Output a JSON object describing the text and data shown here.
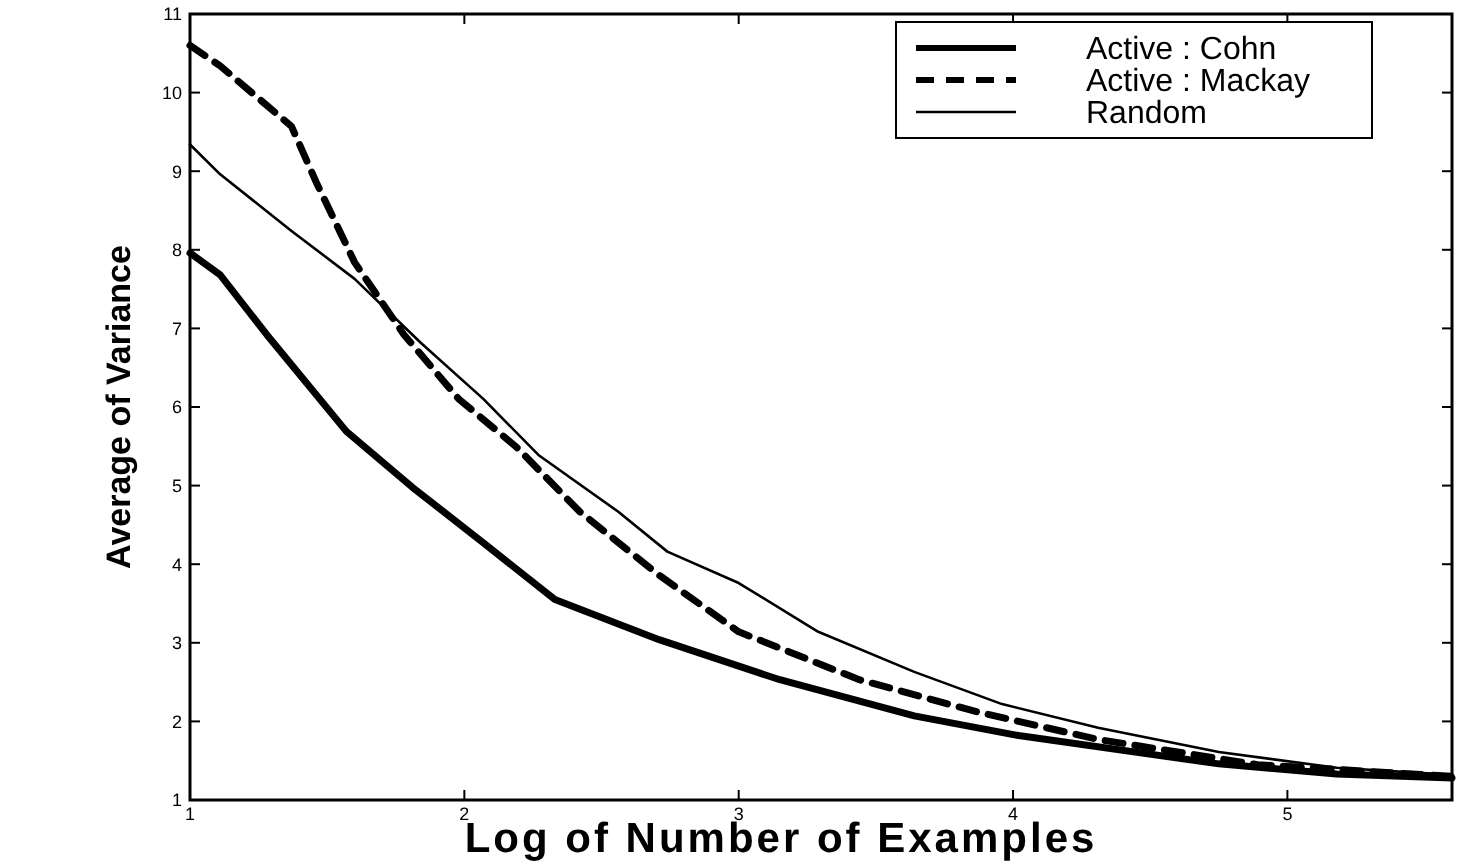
{
  "chart_data": {
    "type": "line",
    "xlabel": "Log of Number of Examples",
    "ylabel": "Average of Variance",
    "xlim": [
      1,
      5.6
    ],
    "ylim": [
      1,
      11
    ],
    "xticks": [
      1,
      2,
      3,
      4,
      5
    ],
    "yticks": [
      1,
      2,
      3,
      4,
      5,
      6,
      7,
      8,
      9,
      10,
      11
    ],
    "grid": false,
    "legend": "top right",
    "marker": "none",
    "series": [
      {
        "name": "Active : Cohn",
        "color": "#000000",
        "line_style": "solid",
        "x": [
          1,
          1.11,
          1.28,
          1.57,
          1.81,
          2.07,
          2.33,
          2.71,
          3.15,
          3.64,
          4.02,
          4.75,
          5.18,
          5.6
        ],
        "values": [
          7.96,
          7.68,
          6.92,
          5.69,
          4.98,
          4.27,
          3.55,
          3.04,
          2.53,
          2.07,
          1.82,
          1.46,
          1.33,
          1.28
        ]
      },
      {
        "name": "Active : Mackay",
        "color": "#000000",
        "line_style": "dashed",
        "x": [
          1,
          1.11,
          1.37,
          1.46,
          1.6,
          1.78,
          1.98,
          2.19,
          2.42,
          2.71,
          3,
          3.44,
          3.87,
          4.31,
          4.89,
          5.6
        ],
        "values": [
          10.6,
          10.34,
          9.57,
          8.86,
          7.84,
          6.92,
          6.1,
          5.49,
          4.67,
          3.86,
          3.14,
          2.53,
          2.12,
          1.77,
          1.45,
          1.3
        ]
      },
      {
        "name": "Random",
        "color": "#000000",
        "line_style": "solid",
        "x": [
          1,
          1.11,
          1.37,
          1.6,
          1.84,
          2.07,
          2.27,
          2.56,
          2.74,
          3,
          3.29,
          3.64,
          3.96,
          4.31,
          4.75,
          5.18,
          5.6
        ],
        "values": [
          9.34,
          8.96,
          8.24,
          7.63,
          6.82,
          6.1,
          5.39,
          4.67,
          4.16,
          3.76,
          3.14,
          2.63,
          2.22,
          1.92,
          1.61,
          1.41,
          1.32
        ]
      }
    ]
  }
}
